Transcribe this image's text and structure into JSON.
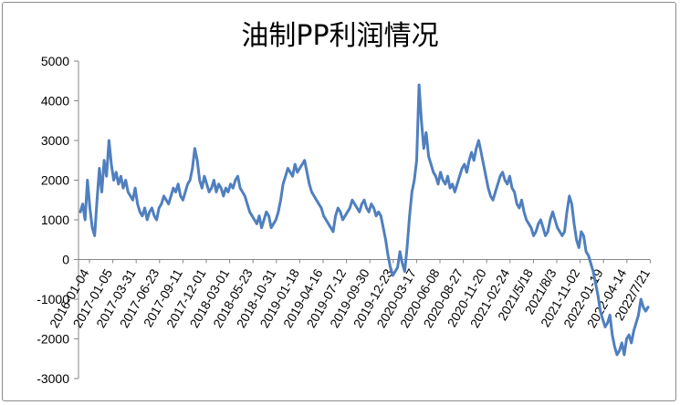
{
  "chart_data": {
    "type": "line",
    "title": "油制PP利润情况",
    "xlabel": "",
    "ylabel": "",
    "ylim": [
      -3000,
      5000
    ],
    "y_ticks": [
      5000,
      4000,
      3000,
      2000,
      1000,
      0,
      -1000,
      -2000,
      -3000
    ],
    "x_tick_labels": [
      "2016-01-04",
      "2017-01-05",
      "2017-03-31",
      "2017-06-23",
      "2017-09-11",
      "2017-12-01",
      "2018-03-01",
      "2018-05-23",
      "2018-10-31",
      "2019-01-18",
      "2019-04-16",
      "2019-07-12",
      "2019-09-30",
      "2019-12-23",
      "2020-03-17",
      "2020-06-08",
      "2020-08-27",
      "2020-11-20",
      "2021-02-24",
      "2021/5/18",
      "2021/8/3",
      "2021-11-02",
      "2022-01-19",
      "2022-04-14",
      "2022/7/21"
    ],
    "grid": false,
    "legend": "none",
    "series": [
      {
        "color": "#4f7fbf",
        "values": [
          1200,
          1400,
          1000,
          2000,
          1300,
          800,
          600,
          1500,
          2300,
          1700,
          2500,
          2100,
          3000,
          2400,
          2000,
          2200,
          1900,
          2100,
          1800,
          2000,
          1700,
          1600,
          1500,
          1800,
          1400,
          1200,
          1100,
          1300,
          1000,
          1200,
          1300,
          1100,
          1000,
          1300,
          1400,
          1600,
          1500,
          1400,
          1600,
          1800,
          1700,
          1900,
          1600,
          1500,
          1700,
          1900,
          2000,
          2300,
          2800,
          2500,
          2000,
          1800,
          2100,
          1900,
          1700,
          1800,
          2000,
          1700,
          1900,
          1800,
          1600,
          1800,
          1700,
          1900,
          1800,
          2000,
          2100,
          1800,
          1700,
          1600,
          1400,
          1200,
          1100,
          1000,
          900,
          1100,
          800,
          1000,
          1200,
          1100,
          800,
          900,
          1000,
          1200,
          1500,
          1900,
          2100,
          2300,
          2200,
          2100,
          2400,
          2200,
          2300,
          2400,
          2500,
          2200,
          1900,
          1700,
          1600,
          1500,
          1400,
          1300,
          1100,
          1000,
          900,
          800,
          700,
          1100,
          1300,
          1200,
          1000,
          1100,
          1200,
          1300,
          1500,
          1400,
          1300,
          1200,
          1400,
          1500,
          1300,
          1200,
          1400,
          1300,
          1100,
          1200,
          1100,
          800,
          500,
          100,
          -200,
          -400,
          -300,
          -200,
          200,
          -100,
          -300,
          300,
          1100,
          1700,
          2000,
          2500,
          4400,
          3500,
          2800,
          3200,
          2600,
          2400,
          2200,
          2100,
          1900,
          2200,
          2000,
          1900,
          2100,
          1800,
          1900,
          1700,
          1900,
          2100,
          2300,
          2400,
          2200,
          2500,
          2700,
          2500,
          2800,
          3000,
          2700,
          2400,
          2100,
          1800,
          1600,
          1500,
          1700,
          1900,
          2100,
          2200,
          2000,
          1900,
          2100,
          1800,
          1700,
          1400,
          1300,
          1500,
          1200,
          1000,
          900,
          800,
          600,
          700,
          900,
          1000,
          800,
          600,
          700,
          1000,
          1200,
          1000,
          800,
          700,
          600,
          700,
          1200,
          1600,
          1400,
          900,
          500,
          300,
          700,
          600,
          200,
          100,
          -100,
          -300,
          -600,
          -900,
          -1300,
          -1500,
          -1700,
          -1600,
          -1400,
          -1900,
          -2200,
          -2400,
          -2300,
          -2100,
          -2400,
          -2000,
          -1900,
          -2100,
          -1800,
          -1600,
          -1400,
          -1000,
          -1200,
          -1300,
          -1200
        ]
      }
    ]
  }
}
